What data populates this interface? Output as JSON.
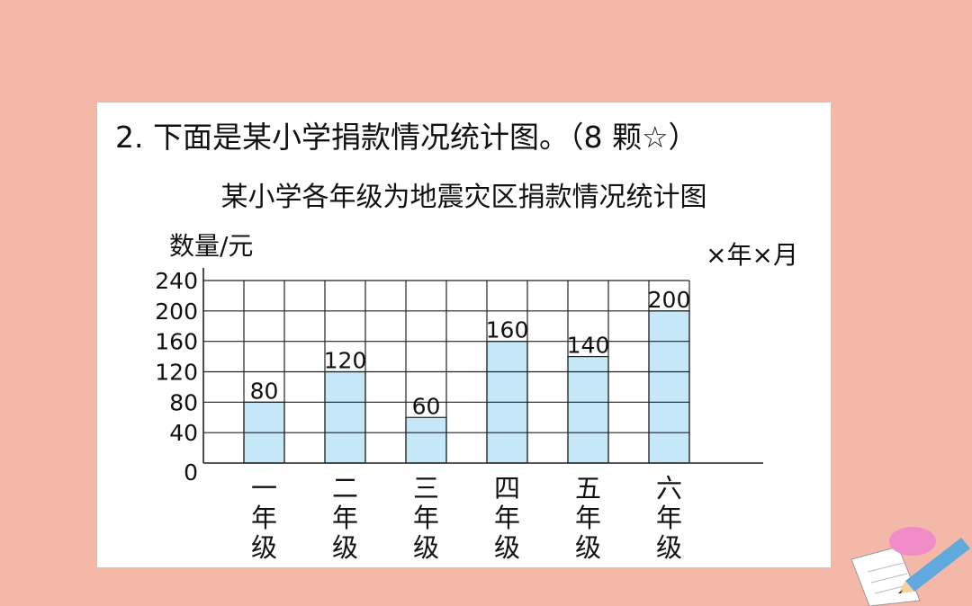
{
  "question": "2. 下面是某小学捐款情况统计图。（8 颗☆）",
  "note": "×年×月",
  "chart_data": {
    "type": "bar",
    "title": "某小学各年级为地震灾区捐款情况统计图",
    "ylabel": "数量/元",
    "xlabel": "",
    "categories": [
      "一年级",
      "二年级",
      "三年级",
      "四年级",
      "五年级",
      "六年级"
    ],
    "values": [
      80,
      120,
      60,
      160,
      140,
      200
    ],
    "ylim": [
      0,
      240
    ],
    "yticks": [
      0,
      40,
      80,
      120,
      160,
      200,
      240
    ],
    "grid": true,
    "bar_color": "#c6e7f7"
  }
}
